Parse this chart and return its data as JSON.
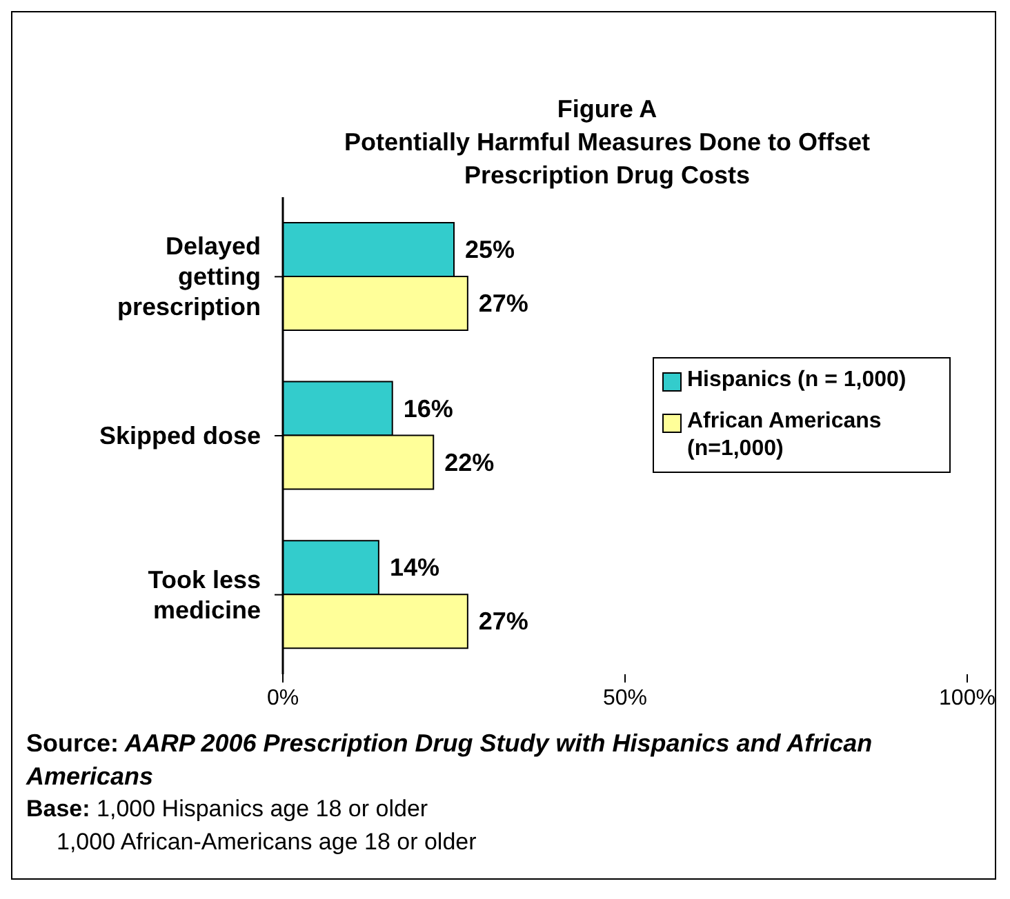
{
  "chart_data": {
    "type": "bar",
    "orientation": "horizontal",
    "title": "Figure A\nPotentially Harmful Measures Done to Offset\nPrescription Drug Costs",
    "categories": [
      "Delayed getting prescription",
      "Skipped dose",
      "Took less medicine"
    ],
    "series": [
      {
        "name": "Hispanics (n = 1,000)",
        "color": "#33cccc",
        "values": [
          25,
          16,
          14
        ],
        "value_labels": [
          "25%",
          "16%",
          "14%"
        ]
      },
      {
        "name": "African Americans (n=1,000)",
        "color": "#ffff99",
        "values": [
          27,
          22,
          27
        ],
        "value_labels": [
          "27%",
          "22%",
          "27%"
        ]
      }
    ],
    "xlim": [
      0,
      100
    ],
    "xticks": [
      {
        "value": 0,
        "label": "0%"
      },
      {
        "value": 50,
        "label": "50%"
      },
      {
        "value": 100,
        "label": "100%"
      }
    ],
    "grid": false,
    "legend": "right",
    "annotations": [
      "Source: AARP 2006 Prescription Drug Study with Hispanics and African Americans",
      "Base: 1,000 Hispanics age 18 or older",
      "1,000 African-Americans age 18 or older"
    ]
  }
}
